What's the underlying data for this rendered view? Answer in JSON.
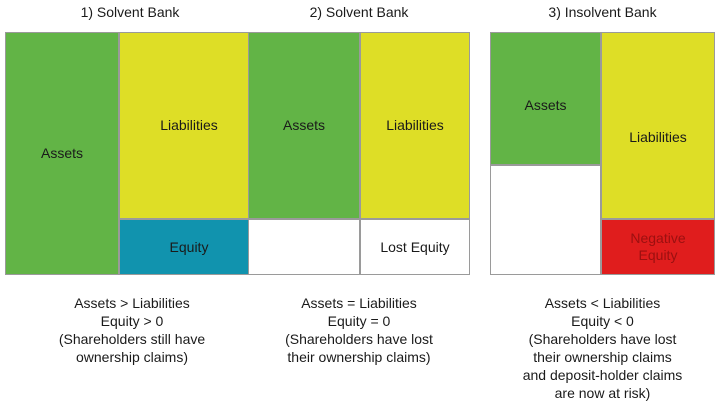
{
  "panels": [
    {
      "title": "1) Solvent Bank",
      "assets": "Assets",
      "liabilities": "Liabilities",
      "equity": "Equity",
      "caption": [
        "Assets > Liabilities",
        "Equity > 0",
        "(Shareholders still have",
        "ownership claims)"
      ]
    },
    {
      "title": "2) Solvent Bank",
      "assets": "Assets",
      "liabilities": "Liabilities",
      "equity": "Lost Equity",
      "caption": [
        "Assets = Liabilities",
        "Equity = 0",
        "(Shareholders have lost",
        "their ownership claims)"
      ]
    },
    {
      "title": "3) Insolvent Bank",
      "assets": "Assets",
      "liabilities": "Liabilities",
      "equity": "Negative Equity",
      "caption": [
        "Assets < Liabilities",
        "Equity < 0",
        "(Shareholders have lost",
        "their ownership claims",
        "and deposit-holder claims",
        "are now at risk)"
      ]
    }
  ],
  "colors": {
    "assets": "#62b446",
    "liabilities": "#dede26",
    "equity_positive": "#1193ae",
    "equity_negative": "#e01d1d",
    "equity_lost": "#ffffff"
  }
}
